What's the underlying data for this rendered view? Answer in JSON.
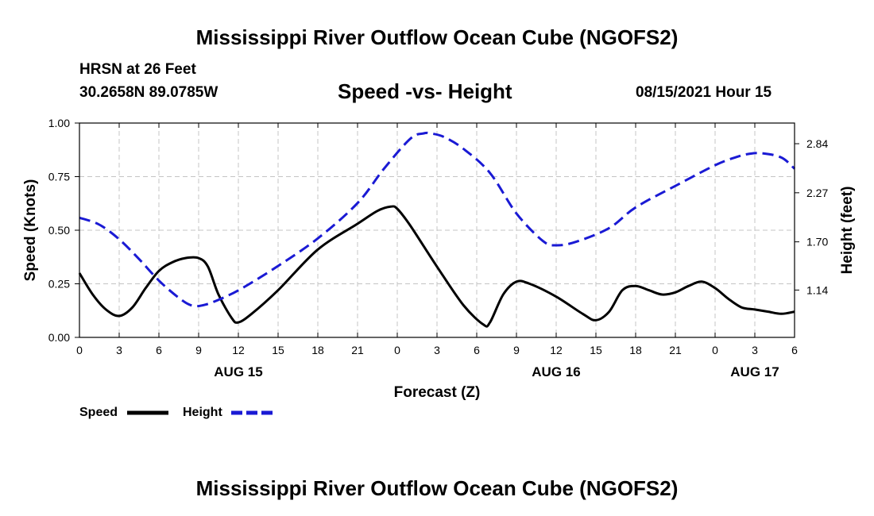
{
  "header": {
    "title": "Mississippi River Outflow Ocean Cube (NGOFS2)",
    "station": "HRSN at 26 Feet",
    "coordinates": "30.2658N  89.0785W",
    "plot_title": "Speed -vs- Height",
    "datetime": "08/15/2021 Hour 15",
    "footer_title": "Mississippi River Outflow Ocean Cube (NGOFS2)"
  },
  "legend": {
    "speed_label": "Speed",
    "height_label": "Height"
  },
  "colors": {
    "speed": "#000000",
    "height": "#1a1ad4",
    "grid": "#c4c4c4"
  },
  "chart_data": {
    "type": "line",
    "title": "Speed -vs- Height",
    "xlabel": "Forecast (Z)",
    "ylabel": "Speed (Knots)",
    "y2label": "Height (feet)",
    "xlim": [
      0,
      54
    ],
    "ylim": [
      0,
      1
    ],
    "y2lim": [
      0.59,
      3.08
    ],
    "grid": true,
    "x_ticks": [
      0,
      3,
      6,
      9,
      12,
      15,
      18,
      21,
      24,
      27,
      30,
      33,
      36,
      39,
      42,
      45,
      48,
      51,
      54
    ],
    "x_tick_labels": [
      "0",
      "3",
      "6",
      "9",
      "12",
      "15",
      "18",
      "21",
      "0",
      "3",
      "6",
      "9",
      "12",
      "15",
      "18",
      "21",
      "0",
      "3",
      "6"
    ],
    "y_ticks": [
      0,
      0.25,
      0.5,
      0.75,
      1
    ],
    "y_tick_labels": [
      "0.00",
      "0.25",
      "0.50",
      "0.75",
      "1.00"
    ],
    "y2_ticks": [
      1.14,
      1.7,
      2.27,
      2.84
    ],
    "y2_tick_labels": [
      "1.14",
      "1.70",
      "2.27",
      "2.84"
    ],
    "date_labels": [
      {
        "x": 12,
        "label": "AUG 15"
      },
      {
        "x": 36,
        "label": "AUG 16"
      },
      {
        "x": 51,
        "label": "AUG 17"
      }
    ],
    "series": [
      {
        "name": "Speed",
        "axis": "left",
        "style": "solid",
        "x": [
          0,
          1,
          2,
          3,
          4,
          5,
          6,
          7,
          8,
          9,
          9.7,
          10.5,
          11.5,
          12,
          13,
          15,
          18,
          21,
          22.5,
          23.5,
          24,
          25,
          27,
          29,
          30.5,
          31,
          32,
          33,
          34,
          36,
          38,
          39,
          40,
          41,
          42,
          43,
          44,
          45,
          46,
          47,
          48,
          49,
          50,
          51,
          52,
          53,
          54
        ],
        "values": [
          0.3,
          0.2,
          0.13,
          0.1,
          0.14,
          0.23,
          0.31,
          0.35,
          0.37,
          0.37,
          0.33,
          0.2,
          0.09,
          0.07,
          0.11,
          0.22,
          0.41,
          0.53,
          0.59,
          0.61,
          0.6,
          0.52,
          0.33,
          0.15,
          0.06,
          0.07,
          0.2,
          0.26,
          0.25,
          0.19,
          0.11,
          0.08,
          0.12,
          0.22,
          0.24,
          0.22,
          0.2,
          0.21,
          0.24,
          0.26,
          0.23,
          0.18,
          0.14,
          0.13,
          0.12,
          0.11,
          0.12
        ]
      },
      {
        "name": "Height",
        "axis": "right",
        "style": "dashed",
        "x": [
          0,
          1.5,
          3,
          4.5,
          6,
          7.5,
          8.5,
          9.5,
          11,
          12.5,
          15,
          18,
          21,
          23,
          25,
          26,
          26.5,
          27.5,
          29,
          31,
          33,
          35,
          36,
          37.5,
          40,
          42,
          45,
          48,
          49.5,
          50.5,
          51.5,
          53,
          54
        ],
        "values": [
          1.98,
          1.9,
          1.73,
          1.5,
          1.25,
          1.05,
          0.96,
          0.97,
          1.06,
          1.18,
          1.42,
          1.74,
          2.15,
          2.55,
          2.9,
          2.96,
          2.96,
          2.92,
          2.78,
          2.5,
          2.03,
          1.71,
          1.66,
          1.7,
          1.86,
          2.1,
          2.35,
          2.59,
          2.68,
          2.72,
          2.73,
          2.68,
          2.55
        ]
      }
    ]
  }
}
